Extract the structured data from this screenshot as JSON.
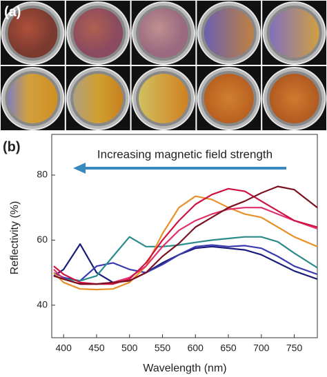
{
  "panel_a": {
    "label": "(a)"
  },
  "chart_data": {
    "type": "line",
    "label": "(b)",
    "annotation": "Increasing magnetic field strength",
    "x_label": "Wavelength (nm)",
    "y_label": "Reflectivity (%)",
    "x": [
      385,
      400,
      425,
      450,
      475,
      500,
      525,
      550,
      575,
      600,
      625,
      650,
      675,
      700,
      725,
      750,
      785
    ],
    "xlim": [
      382,
      785
    ],
    "xticks": [
      400,
      450,
      500,
      550,
      600,
      650,
      700,
      750
    ],
    "ylim": [
      30,
      92.5
    ],
    "yticks": [
      40,
      60,
      80
    ],
    "series": [
      {
        "color": "#1a1a7a",
        "values": [
          49,
          51,
          58.8,
          50,
          47,
          47.5,
          50,
          53,
          55.5,
          57.5,
          58,
          57.5,
          57,
          55.5,
          53,
          50.5,
          48
        ]
      },
      {
        "color": "#3a3ab0",
        "values": [
          50,
          48.5,
          47.5,
          52,
          53,
          51,
          50,
          52.5,
          55.5,
          58,
          58.5,
          58,
          58.3,
          57.5,
          55,
          52,
          49.5
        ]
      },
      {
        "color": "#2a8a8a",
        "values": [
          49,
          48,
          47.5,
          49,
          55,
          61,
          58,
          58,
          58.5,
          59.3,
          60,
          60.5,
          61,
          61,
          59.5,
          56,
          51.5
        ]
      },
      {
        "color": "#e8902a",
        "values": [
          50,
          47,
          45,
          44.8,
          45,
          47,
          52,
          62,
          70,
          73.5,
          72.5,
          70,
          68,
          67,
          64,
          61,
          58
        ]
      },
      {
        "color": "#e0306a",
        "values": [
          51,
          48,
          46.5,
          46.5,
          47,
          48.5,
          52,
          58,
          63,
          66,
          68,
          69.5,
          70,
          70,
          68,
          66,
          63.5
        ]
      },
      {
        "color": "#d01040",
        "values": [
          52,
          49.5,
          47,
          46.5,
          46.5,
          48,
          53,
          60,
          66,
          71,
          74,
          75.8,
          75,
          72,
          69,
          66,
          64
        ]
      },
      {
        "color": "#7a1020",
        "values": [
          49,
          48,
          46.5,
          46.5,
          47,
          47.5,
          50,
          55,
          59,
          64,
          67,
          70,
          72,
          74.5,
          76.5,
          75.5,
          70
        ]
      }
    ]
  }
}
